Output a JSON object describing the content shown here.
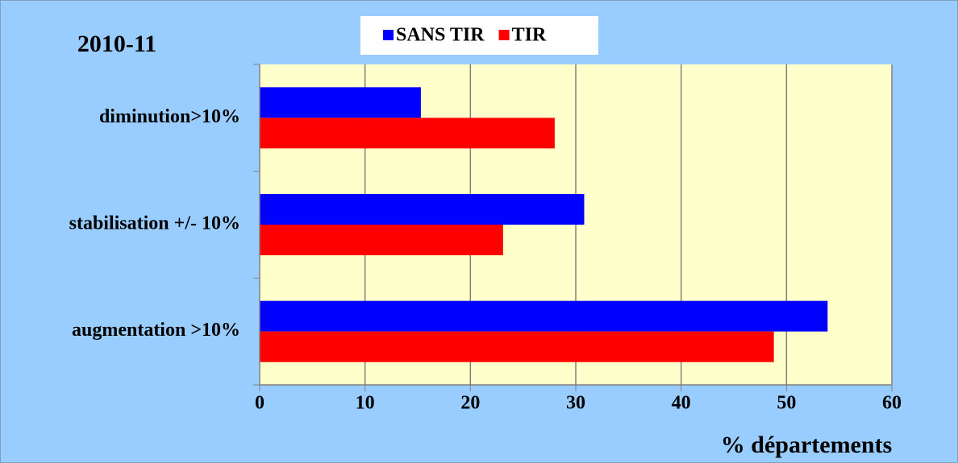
{
  "chart_data": {
    "type": "barh",
    "title": "2010-11",
    "xlabel": "% départements",
    "categories": [
      "diminution>10%",
      "stabilisation +/- 10%",
      "augmentation >10%"
    ],
    "series": [
      {
        "name": "SANS TIR",
        "color": "#0000ff",
        "values": [
          15.3,
          30.8,
          53.9
        ]
      },
      {
        "name": "TIR",
        "color": "#ff0000",
        "values": [
          28.0,
          23.1,
          48.8
        ]
      }
    ],
    "xlim": [
      0,
      60
    ],
    "xticks": [
      0,
      10,
      20,
      30,
      40,
      50,
      60
    ],
    "grid": true,
    "legend": "top"
  }
}
